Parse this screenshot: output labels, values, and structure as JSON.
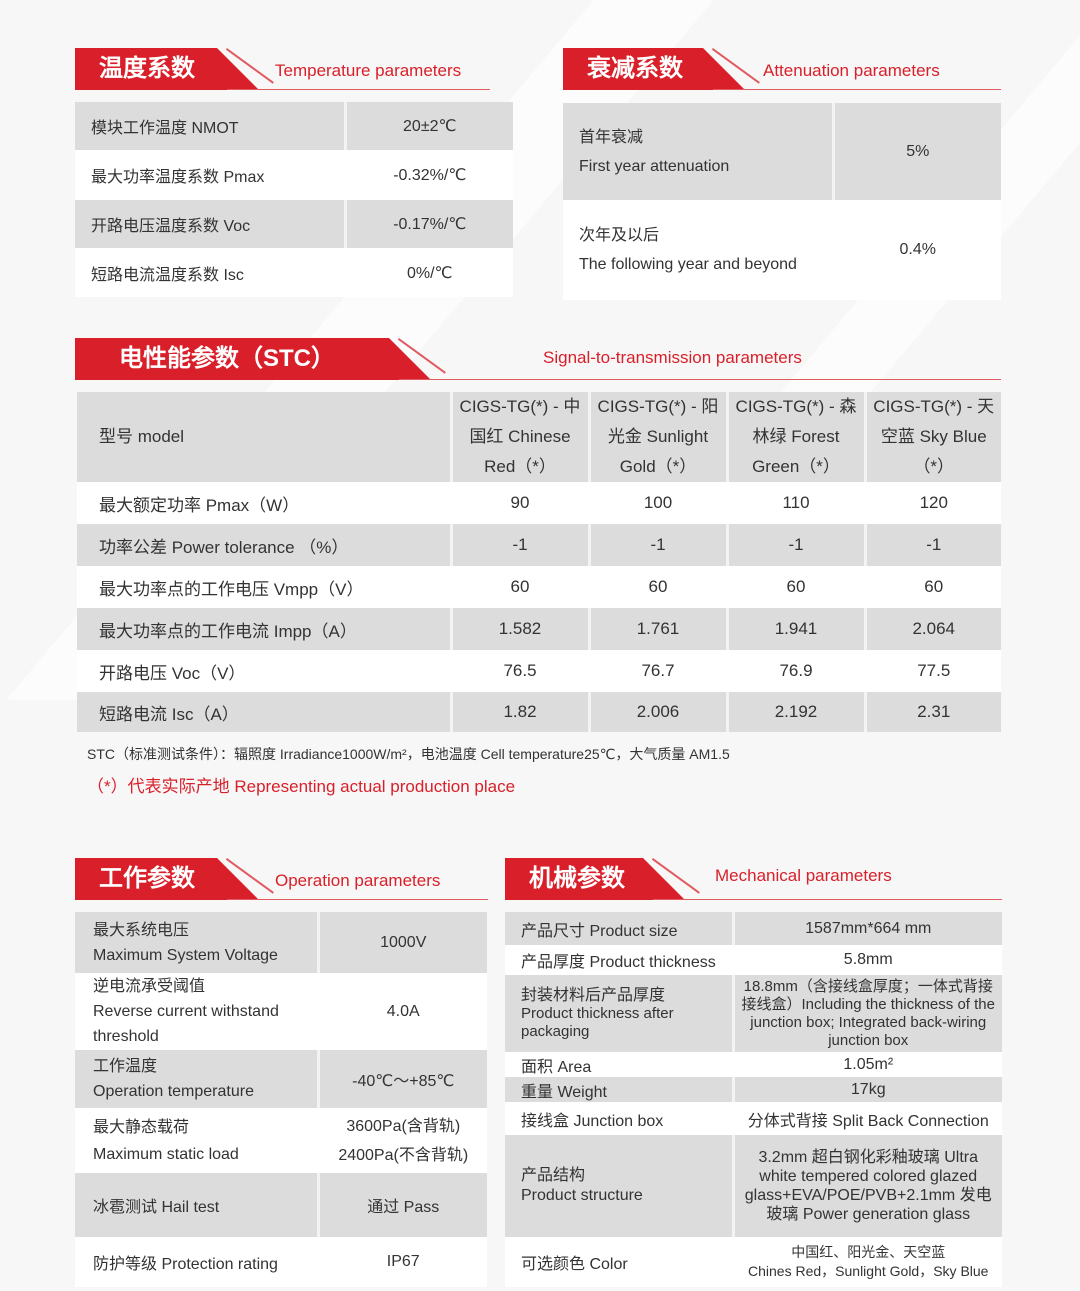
{
  "colors": {
    "accent": "#d9202a",
    "row_gray": "#dcdcdd"
  },
  "temperature": {
    "title_cn": "温度系数",
    "title_en": "Temperature parameters",
    "rows": [
      [
        "模块工作温度 NMOT",
        "20±2℃"
      ],
      [
        "最大功率温度系数 Pmax",
        "-0.32%/℃"
      ],
      [
        "开路电压温度系数 Voc",
        "-0.17%/℃"
      ],
      [
        "短路电流温度系数 Isc",
        "0%/℃"
      ]
    ]
  },
  "attenuation": {
    "title_cn": "衰减系数",
    "title_en": "Attenuation parameters",
    "rows": [
      {
        "cn": "首年衰减",
        "en": "First year attenuation",
        "value": "5%"
      },
      {
        "cn": "次年及以后",
        "en": "The following year and beyond",
        "value": "0.4%"
      }
    ]
  },
  "stc": {
    "title_cn": "电性能参数（STC）",
    "title_en": "Signal-to-transmission parameters",
    "header": [
      "型号 model",
      "CIGS-TG(*) - 中国红 Chinese Red（*）",
      "CIGS-TG(*) - 阳光金 Sunlight Gold（*）",
      "CIGS-TG(*) - 森林绿 Forest Green（*）",
      "CIGS-TG(*) - 天空蓝 Sky Blue（*）"
    ],
    "rows": [
      [
        "最大额定功率 Pmax（W）",
        "90",
        "100",
        "110",
        "120"
      ],
      [
        "功率公差 Power tolerance （%）",
        "-1",
        "-1",
        "-1",
        "-1"
      ],
      [
        "最大功率点的工作电压 Vmpp（V）",
        "60",
        "60",
        "60",
        "60"
      ],
      [
        "最大功率点的工作电流 Impp（A）",
        "1.582",
        "1.761",
        "1.941",
        "2.064"
      ],
      [
        "开路电压 Voc（V）",
        "76.5",
        "76.7",
        "76.9",
        "77.5"
      ],
      [
        "短路电流 Isc（A）",
        "1.82",
        "2.006",
        "2.192",
        "2.31"
      ]
    ],
    "note": "STC（标准测试条件）：辐照度 Irradiance1000W/m²，电池温度 Cell temperature25℃，大气质量 AM1.5",
    "note_red": "（*）代表实际产地 Representing actual production place"
  },
  "operation": {
    "title_cn": "工作参数",
    "title_en": "Operation parameters",
    "rows": [
      {
        "cn": "最大系统电压",
        "en": "Maximum System Voltage",
        "value": "1000V"
      },
      {
        "cn": "逆电流承受阈值",
        "en": "Reverse current withstand threshold",
        "value": "4.0A"
      },
      {
        "cn": "工作温度",
        "en": "Operation temperature",
        "value": "-40℃～+85℃"
      },
      {
        "cn": "最大静态载荷",
        "en": "Maximum static load",
        "value": "3600Pa(含背轨)",
        "value2": "2400Pa(不含背轨)"
      },
      {
        "cn": "冰雹测试 Hail test",
        "en": "",
        "value": "通过 Pass"
      },
      {
        "cn": "防护等级 Protection rating",
        "en": "",
        "value": "IP67"
      }
    ]
  },
  "mechanical": {
    "title_cn": "机械参数",
    "title_en": "Mechanical parameters",
    "rows": [
      {
        "label": "产品尺寸 Product size",
        "value": "1587mm*664 mm"
      },
      {
        "label": "产品厚度 Product thickness",
        "value": "5.8mm"
      },
      {
        "label": "封装材料后产品厚度",
        "label2": "Product thickness after packaging",
        "value": "18.8mm（含接线盒厚度；一体式背接接线盒）Including the thickness of the junction box; Integrated back-wiring junction box"
      },
      {
        "label": "面积 Area",
        "value": "1.05m²"
      },
      {
        "label": "重量 Weight",
        "value": "17kg"
      },
      {
        "label": "接线盒 Junction box",
        "value": "分体式背接 Split Back Connection"
      },
      {
        "label": "产品结构",
        "label2": "Product structure",
        "value": "3.2mm 超白钢化彩釉玻璃 Ultra white tempered colored glazed glass+EVA/POE/PVB+2.1mm 发电玻璃 Power generation glass"
      },
      {
        "label": "可选颜色 Color",
        "value": "中国红、阳光金、天空蓝",
        "value2": "Chines Red，Sunlight Gold，Sky Blue"
      }
    ]
  }
}
